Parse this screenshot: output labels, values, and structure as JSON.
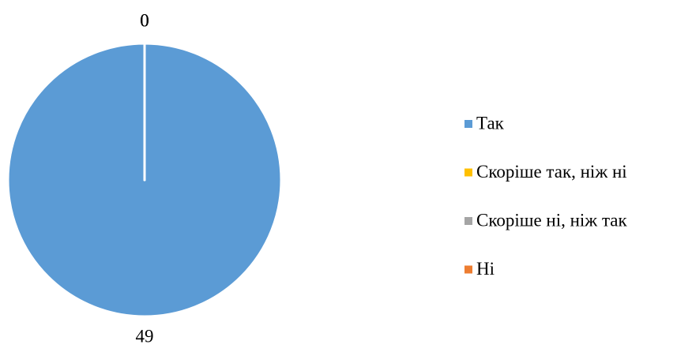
{
  "chart_data": {
    "type": "pie",
    "categories": [
      "Так",
      "Скоріше так, ніж ні",
      "Скоріше ні, ніж так",
      "Ні"
    ],
    "values": [
      49,
      0,
      0,
      0
    ],
    "colors": [
      "#5b9bd5",
      "#ffc000",
      "#a5a5a5",
      "#ed7d31"
    ],
    "legend": "right"
  }
}
